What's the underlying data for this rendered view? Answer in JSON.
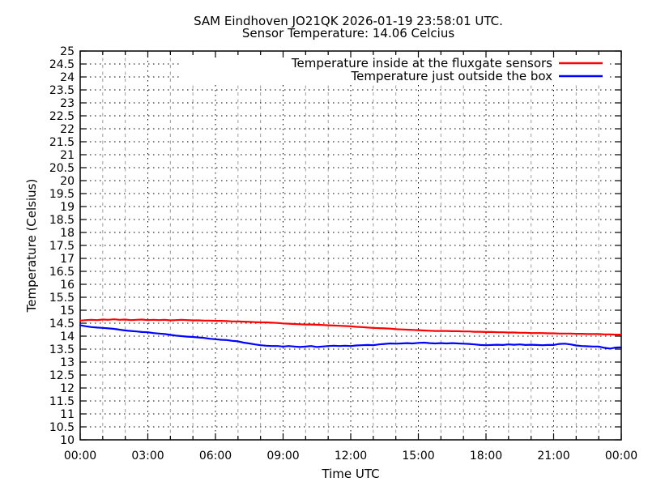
{
  "chart_data": {
    "type": "line",
    "title": "SAM Eindhoven JO21QK 2026-01-19 23:58:01 UTC.",
    "subtitle": "Sensor Temperature: 14.06 Celcius",
    "sensor_temperature_c": 14.06,
    "xlabel": "Time UTC",
    "ylabel": "Temperature (Celsius)",
    "xlim_hours": [
      0,
      24
    ],
    "ylim": [
      10,
      25
    ],
    "y_tick_step": 0.5,
    "x_minor_step_hours": 1,
    "x_ticks_major_hours": [
      0,
      3,
      6,
      9,
      12,
      15,
      18,
      21,
      24
    ],
    "x_tick_labels": [
      "00:00",
      "03:00",
      "06:00",
      "09:00",
      "12:00",
      "15:00",
      "18:00",
      "21:00",
      "00:00"
    ],
    "grid": true,
    "legend_position": "top-right-inside",
    "series": [
      {
        "name": "Temperature inside at the fluxgate sensors",
        "color": "#ff0000",
        "t_start": 0,
        "t_step": 0.25,
        "values": [
          14.6,
          14.62,
          14.63,
          14.62,
          14.64,
          14.63,
          14.65,
          14.63,
          14.64,
          14.62,
          14.63,
          14.64,
          14.62,
          14.63,
          14.62,
          14.63,
          14.61,
          14.62,
          14.63,
          14.62,
          14.61,
          14.61,
          14.6,
          14.6,
          14.59,
          14.59,
          14.58,
          14.57,
          14.57,
          14.56,
          14.55,
          14.54,
          14.53,
          14.53,
          14.52,
          14.51,
          14.49,
          14.48,
          14.47,
          14.46,
          14.45,
          14.45,
          14.44,
          14.43,
          14.42,
          14.41,
          14.4,
          14.39,
          14.38,
          14.36,
          14.35,
          14.33,
          14.32,
          14.31,
          14.3,
          14.29,
          14.27,
          14.26,
          14.25,
          14.24,
          14.23,
          14.22,
          14.21,
          14.2,
          14.2,
          14.2,
          14.19,
          14.19,
          14.18,
          14.18,
          14.17,
          14.17,
          14.16,
          14.16,
          14.15,
          14.15,
          14.14,
          14.14,
          14.13,
          14.13,
          14.12,
          14.12,
          14.12,
          14.11,
          14.11,
          14.1,
          14.1,
          14.1,
          14.09,
          14.09,
          14.08,
          14.08,
          14.08,
          14.07,
          14.07,
          14.06,
          14.06
        ]
      },
      {
        "name": "Temperature just outside the box",
        "color": "#0000ff",
        "t_start": 0,
        "t_step": 0.25,
        "values": [
          14.42,
          14.38,
          14.35,
          14.33,
          14.32,
          14.3,
          14.28,
          14.25,
          14.22,
          14.2,
          14.18,
          14.16,
          14.15,
          14.12,
          14.1,
          14.08,
          14.05,
          14.02,
          14.0,
          13.98,
          13.97,
          13.95,
          13.93,
          13.9,
          13.88,
          13.86,
          13.85,
          13.82,
          13.8,
          13.75,
          13.72,
          13.68,
          13.65,
          13.63,
          13.62,
          13.62,
          13.6,
          13.62,
          13.6,
          13.58,
          13.6,
          13.62,
          13.58,
          13.6,
          13.62,
          13.63,
          13.62,
          13.63,
          13.62,
          13.64,
          13.65,
          13.66,
          13.65,
          13.68,
          13.7,
          13.72,
          13.71,
          13.72,
          13.73,
          13.72,
          13.74,
          13.75,
          13.73,
          13.72,
          13.73,
          13.72,
          13.73,
          13.72,
          13.71,
          13.7,
          13.68,
          13.66,
          13.65,
          13.66,
          13.67,
          13.66,
          13.68,
          13.67,
          13.68,
          13.66,
          13.67,
          13.66,
          13.65,
          13.66,
          13.66,
          13.7,
          13.71,
          13.68,
          13.64,
          13.62,
          13.61,
          13.6,
          13.6,
          13.55,
          13.52,
          13.56,
          13.57
        ]
      }
    ]
  }
}
